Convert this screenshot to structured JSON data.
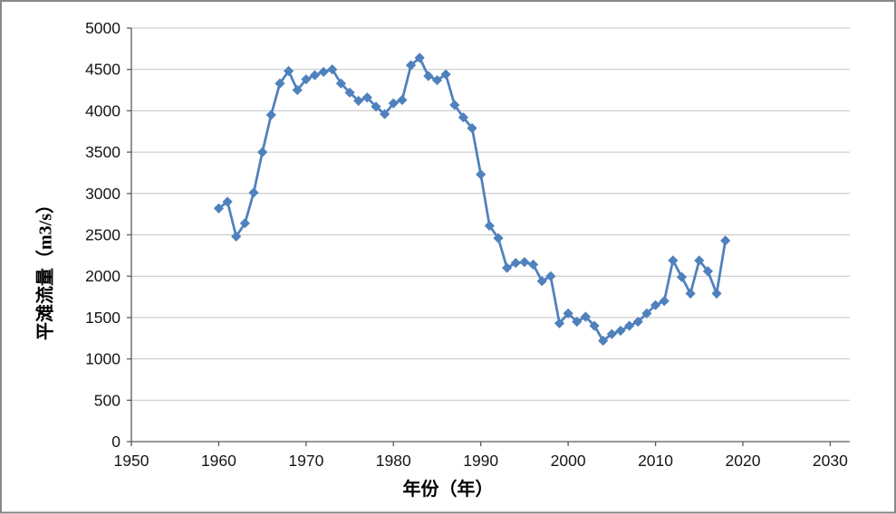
{
  "colors": {
    "series_blue": "#4F81BD",
    "gridline_gray": "#c3c3c3",
    "axis_gray": "#5a5a5a",
    "tick_text": "#161616",
    "frame_border": "#878787"
  },
  "chart_data": {
    "type": "line",
    "title": "",
    "xlabel": "年份（年）",
    "ylabel": "平滩流量（m3/s）",
    "series_name": "平滩流量",
    "marker": "diamond",
    "legend": "none",
    "grid": "horizontal",
    "xlim": [
      1950,
      2030
    ],
    "ylim": [
      0,
      5000
    ],
    "x_ticks": [
      1950,
      1960,
      1970,
      1980,
      1990,
      2000,
      2010,
      2020,
      2030
    ],
    "y_ticks": [
      0,
      500,
      1000,
      1500,
      2000,
      2500,
      3000,
      3500,
      4000,
      4500,
      5000
    ],
    "points": [
      [
        1960,
        2820
      ],
      [
        1961,
        2900
      ],
      [
        1962,
        2480
      ],
      [
        1963,
        2640
      ],
      [
        1964,
        3010
      ],
      [
        1965,
        3500
      ],
      [
        1966,
        3950
      ],
      [
        1967,
        4330
      ],
      [
        1968,
        4480
      ],
      [
        1969,
        4250
      ],
      [
        1970,
        4380
      ],
      [
        1971,
        4430
      ],
      [
        1972,
        4470
      ],
      [
        1973,
        4500
      ],
      [
        1974,
        4330
      ],
      [
        1975,
        4220
      ],
      [
        1976,
        4120
      ],
      [
        1977,
        4160
      ],
      [
        1978,
        4050
      ],
      [
        1979,
        3960
      ],
      [
        1980,
        4090
      ],
      [
        1981,
        4130
      ],
      [
        1982,
        4550
      ],
      [
        1983,
        4640
      ],
      [
        1984,
        4420
      ],
      [
        1985,
        4370
      ],
      [
        1986,
        4440
      ],
      [
        1987,
        4070
      ],
      [
        1988,
        3920
      ],
      [
        1989,
        3790
      ],
      [
        1990,
        3230
      ],
      [
        1991,
        2610
      ],
      [
        1992,
        2460
      ],
      [
        1993,
        2100
      ],
      [
        1994,
        2160
      ],
      [
        1995,
        2170
      ],
      [
        1996,
        2140
      ],
      [
        1997,
        1940
      ],
      [
        1998,
        2000
      ],
      [
        1999,
        1430
      ],
      [
        2000,
        1550
      ],
      [
        2001,
        1450
      ],
      [
        2002,
        1510
      ],
      [
        2003,
        1400
      ],
      [
        2004,
        1220
      ],
      [
        2005,
        1300
      ],
      [
        2006,
        1340
      ],
      [
        2007,
        1400
      ],
      [
        2008,
        1450
      ],
      [
        2009,
        1550
      ],
      [
        2010,
        1650
      ],
      [
        2011,
        1700
      ],
      [
        2012,
        2190
      ],
      [
        2013,
        1990
      ],
      [
        2014,
        1790
      ],
      [
        2015,
        2190
      ],
      [
        2016,
        2060
      ],
      [
        2017,
        1790
      ],
      [
        2018,
        2430
      ]
    ]
  }
}
